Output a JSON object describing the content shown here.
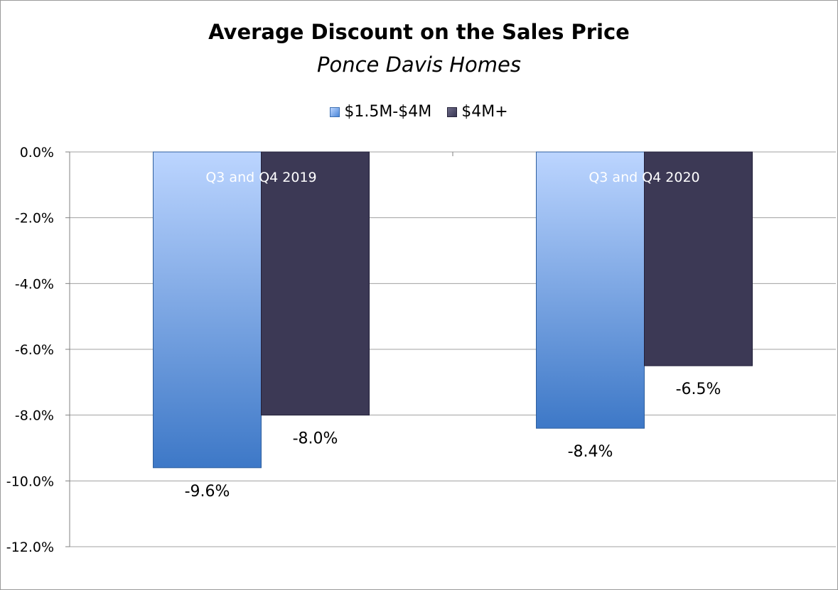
{
  "chart_data": {
    "type": "bar",
    "title": "Average Discount on the Sales Price",
    "subtitle": "Ponce Davis Homes",
    "categories": [
      "Q3 and Q4 2019",
      "Q3 and Q4 2020"
    ],
    "series": [
      {
        "name": "$1.5M-$4M",
        "values": [
          -9.6,
          -8.4
        ],
        "labels": [
          "-9.6%",
          "-8.4%"
        ]
      },
      {
        "name": "$4M+",
        "values": [
          -8.0,
          -6.5
        ],
        "labels": [
          "-8.0%",
          "-6.5%"
        ]
      }
    ],
    "ylim": [
      -12.0,
      0.0
    ],
    "yticks": [
      0.0,
      -2.0,
      -4.0,
      -6.0,
      -8.0,
      -10.0,
      -12.0
    ],
    "ytick_labels": [
      "0.0%",
      "-2.0%",
      "-4.0%",
      "-6.0%",
      "-8.0%",
      "-10.0%",
      "-12.0%"
    ],
    "grid": true,
    "legend_position": "top",
    "colors": {
      "series_1_light": "#bcd5ff",
      "series_1_dark": "#3d78c7",
      "series_2": "#3c3955",
      "gridline": "#a0a0a0"
    }
  }
}
